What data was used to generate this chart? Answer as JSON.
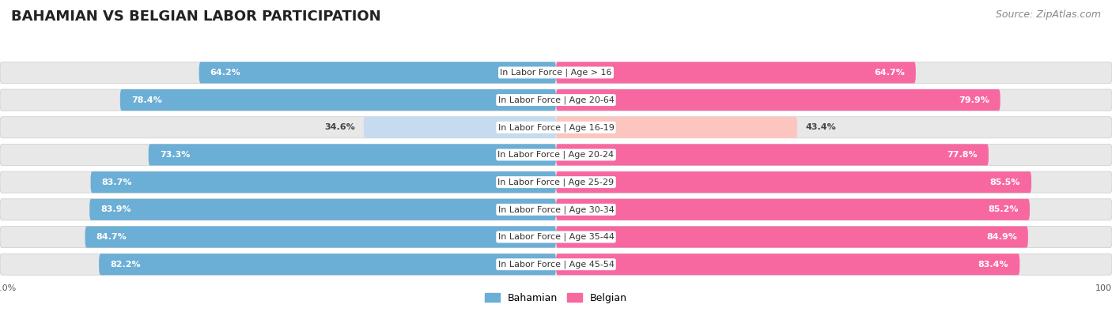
{
  "title": "BAHAMIAN VS BELGIAN LABOR PARTICIPATION",
  "source": "Source: ZipAtlas.com",
  "categories": [
    "In Labor Force | Age > 16",
    "In Labor Force | Age 20-64",
    "In Labor Force | Age 16-19",
    "In Labor Force | Age 20-24",
    "In Labor Force | Age 25-29",
    "In Labor Force | Age 30-34",
    "In Labor Force | Age 35-44",
    "In Labor Force | Age 45-54"
  ],
  "bahamian": [
    64.2,
    78.4,
    34.6,
    73.3,
    83.7,
    83.9,
    84.7,
    82.2
  ],
  "belgian": [
    64.7,
    79.9,
    43.4,
    77.8,
    85.5,
    85.2,
    84.9,
    83.4
  ],
  "bahamian_color_strong": "#6baed6",
  "bahamian_color_light": "#c6dbef",
  "belgian_color_strong": "#f768a1",
  "belgian_color_light": "#fcc5c0",
  "row_bg_color": "#e8e8e8",
  "max_value": 100.0,
  "legend_bahamian": "Bahamian",
  "legend_belgian": "Belgian",
  "threshold_white_label": 50.0,
  "title_fontsize": 13,
  "source_fontsize": 9,
  "label_fontsize": 8,
  "cat_fontsize": 8
}
